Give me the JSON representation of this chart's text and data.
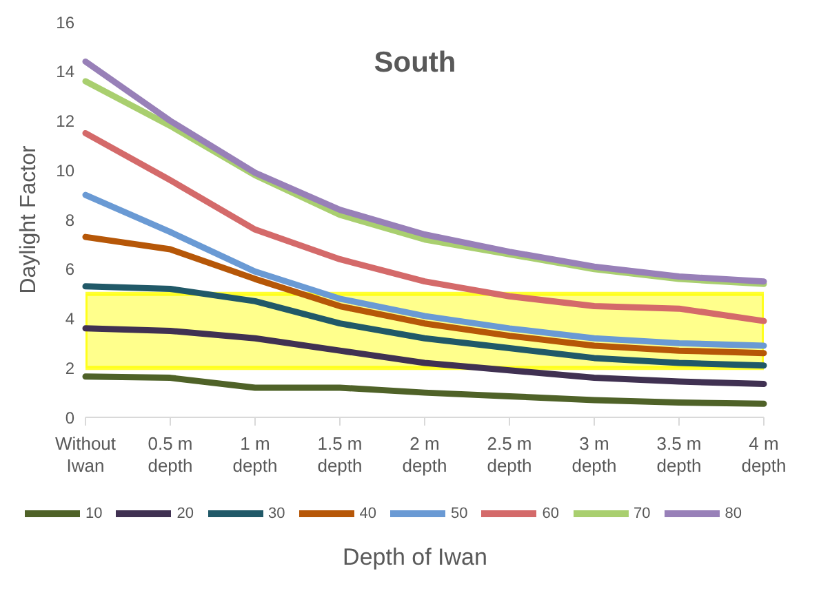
{
  "chart_data": {
    "type": "line",
    "title": "South",
    "xlabel": "Depth of Iwan",
    "ylabel": "Daylight Factor",
    "categories": [
      "Without Iwan",
      "0.5 m depth",
      "1 m depth",
      "1.5 m depth",
      "2 m depth",
      "2.5 m depth",
      "3 m depth",
      "3.5 m depth",
      "4 m depth"
    ],
    "series": [
      {
        "name": "10",
        "color": "#4f6228",
        "values": [
          1.65,
          1.6,
          1.2,
          1.2,
          1.0,
          0.85,
          0.7,
          0.6,
          0.55
        ]
      },
      {
        "name": "20",
        "color": "#403152",
        "values": [
          3.6,
          3.5,
          3.2,
          2.7,
          2.2,
          1.9,
          1.6,
          1.45,
          1.35
        ]
      },
      {
        "name": "30",
        "color": "#215968",
        "values": [
          5.3,
          5.2,
          4.7,
          3.8,
          3.2,
          2.8,
          2.4,
          2.2,
          2.1
        ]
      },
      {
        "name": "40",
        "color": "#b65708",
        "values": [
          7.3,
          6.8,
          5.6,
          4.5,
          3.8,
          3.3,
          2.9,
          2.7,
          2.6
        ]
      },
      {
        "name": "50",
        "color": "#6a9ad4",
        "values": [
          9.0,
          7.5,
          5.9,
          4.8,
          4.1,
          3.6,
          3.2,
          3.0,
          2.9
        ]
      },
      {
        "name": "60",
        "color": "#d46a6a",
        "values": [
          11.5,
          9.6,
          7.6,
          6.4,
          5.5,
          4.9,
          4.5,
          4.4,
          3.9
        ]
      },
      {
        "name": "70",
        "color": "#a9cf6f",
        "values": [
          13.6,
          11.8,
          9.8,
          8.2,
          7.2,
          6.6,
          6.0,
          5.6,
          5.4
        ]
      },
      {
        "name": "80",
        "color": "#9880b8",
        "values": [
          14.4,
          12.0,
          9.9,
          8.4,
          7.4,
          6.7,
          6.1,
          5.7,
          5.5
        ]
      }
    ],
    "ylim": [
      0,
      16
    ],
    "yticks": [
      0,
      2,
      4,
      6,
      8,
      10,
      12,
      14,
      16
    ],
    "bands": [
      {
        "axis": "y",
        "from": 2,
        "to": 5,
        "color": "#ffff00"
      }
    ],
    "grid": false,
    "legend": "bottom",
    "marker": "none",
    "line_style": "solid"
  }
}
